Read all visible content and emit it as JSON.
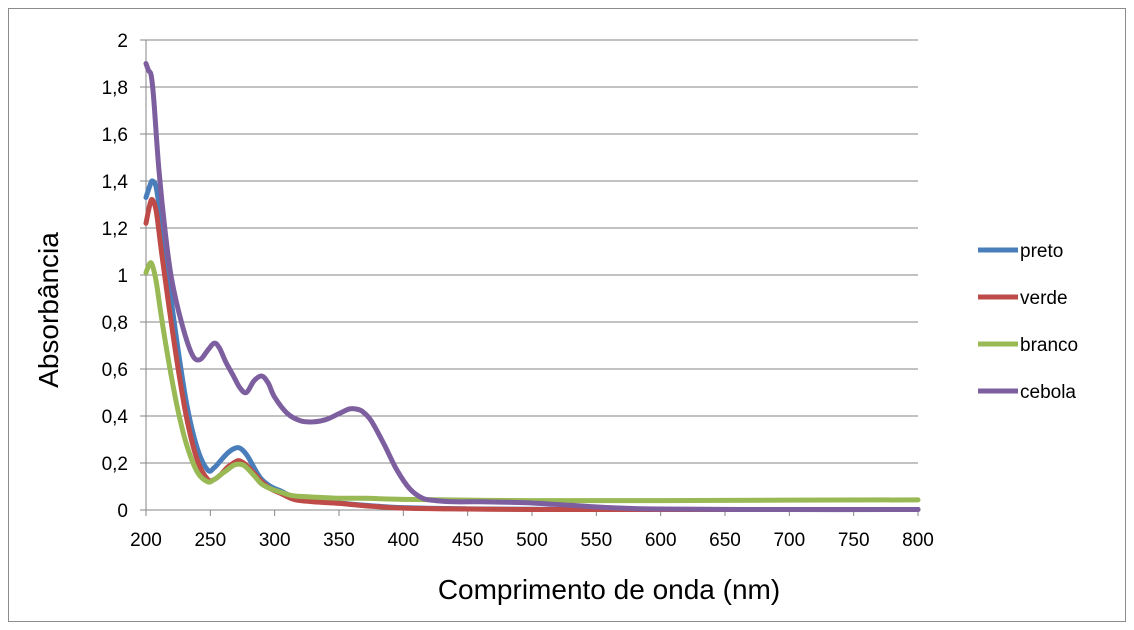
{
  "chart_data": {
    "type": "line",
    "xlabel": "Comprimento de onda (nm)",
    "ylabel": "Absorbância",
    "xlim": [
      200,
      800
    ],
    "ylim": [
      0,
      2
    ],
    "x_ticks": [
      "200",
      "250",
      "300",
      "350",
      "400",
      "450",
      "500",
      "550",
      "600",
      "650",
      "700",
      "750",
      "800"
    ],
    "y_ticks": [
      "0",
      "0,2",
      "0,4",
      "0,6",
      "0,8",
      "1",
      "1,2",
      "1,4",
      "1,6",
      "1,8",
      "2"
    ],
    "grid": "horizontal",
    "legend_position": "right",
    "series": [
      {
        "name": "preto",
        "color": "#4a7ebb",
        "x": [
          200,
          203,
          205,
          208,
          212,
          218,
          225,
          232,
          240,
          248,
          253,
          258,
          263,
          268,
          272,
          276,
          280,
          285,
          290,
          297,
          305,
          315,
          330,
          350,
          370,
          400,
          450,
          500,
          600,
          700,
          800
        ],
        "y": [
          1.33,
          1.38,
          1.4,
          1.37,
          1.22,
          0.96,
          0.68,
          0.44,
          0.26,
          0.17,
          0.18,
          0.21,
          0.24,
          0.26,
          0.265,
          0.25,
          0.22,
          0.17,
          0.13,
          0.1,
          0.08,
          0.055,
          0.04,
          0.03,
          0.02,
          0.01,
          0.005,
          0.003,
          0.002,
          0.002,
          0.002
        ]
      },
      {
        "name": "verde",
        "color": "#be4b48",
        "x": [
          200,
          203,
          205,
          208,
          212,
          218,
          225,
          232,
          240,
          248,
          253,
          258,
          263,
          268,
          272,
          276,
          280,
          285,
          290,
          297,
          305,
          315,
          330,
          350,
          370,
          400,
          450,
          500,
          600,
          700,
          800
        ],
        "y": [
          1.22,
          1.3,
          1.32,
          1.27,
          1.1,
          0.86,
          0.6,
          0.38,
          0.21,
          0.13,
          0.13,
          0.15,
          0.18,
          0.2,
          0.21,
          0.2,
          0.18,
          0.15,
          0.12,
          0.09,
          0.07,
          0.045,
          0.035,
          0.028,
          0.018,
          0.008,
          0.004,
          0.002,
          0.002,
          0.002,
          0.002
        ]
      },
      {
        "name": "branco",
        "color": "#98b954",
        "x": [
          200,
          203,
          205,
          208,
          212,
          218,
          225,
          232,
          240,
          248,
          253,
          258,
          263,
          268,
          272,
          276,
          280,
          285,
          290,
          297,
          305,
          315,
          330,
          350,
          370,
          400,
          450,
          500,
          600,
          700,
          800
        ],
        "y": [
          1.01,
          1.05,
          1.04,
          0.97,
          0.82,
          0.62,
          0.42,
          0.27,
          0.16,
          0.12,
          0.13,
          0.15,
          0.17,
          0.19,
          0.195,
          0.19,
          0.17,
          0.14,
          0.11,
          0.09,
          0.075,
          0.06,
          0.055,
          0.05,
          0.05,
          0.045,
          0.042,
          0.04,
          0.04,
          0.042,
          0.043
        ]
      },
      {
        "name": "cebola",
        "color": "#7d5fa0",
        "x": [
          200,
          202,
          204,
          206,
          210,
          215,
          220,
          228,
          236,
          242,
          248,
          253,
          257,
          262,
          268,
          273,
          278,
          284,
          290,
          295,
          300,
          310,
          320,
          330,
          340,
          350,
          358,
          363,
          368,
          375,
          385,
          395,
          405,
          415,
          425,
          440,
          460,
          480,
          500,
          530,
          560,
          600,
          700,
          800
        ],
        "y": [
          1.9,
          1.87,
          1.85,
          1.75,
          1.45,
          1.18,
          0.98,
          0.79,
          0.66,
          0.64,
          0.68,
          0.71,
          0.69,
          0.63,
          0.57,
          0.52,
          0.5,
          0.55,
          0.57,
          0.54,
          0.48,
          0.41,
          0.38,
          0.375,
          0.385,
          0.41,
          0.43,
          0.43,
          0.42,
          0.38,
          0.28,
          0.17,
          0.09,
          0.05,
          0.04,
          0.035,
          0.035,
          0.033,
          0.03,
          0.02,
          0.01,
          0.004,
          0.002,
          0.002
        ]
      }
    ]
  }
}
